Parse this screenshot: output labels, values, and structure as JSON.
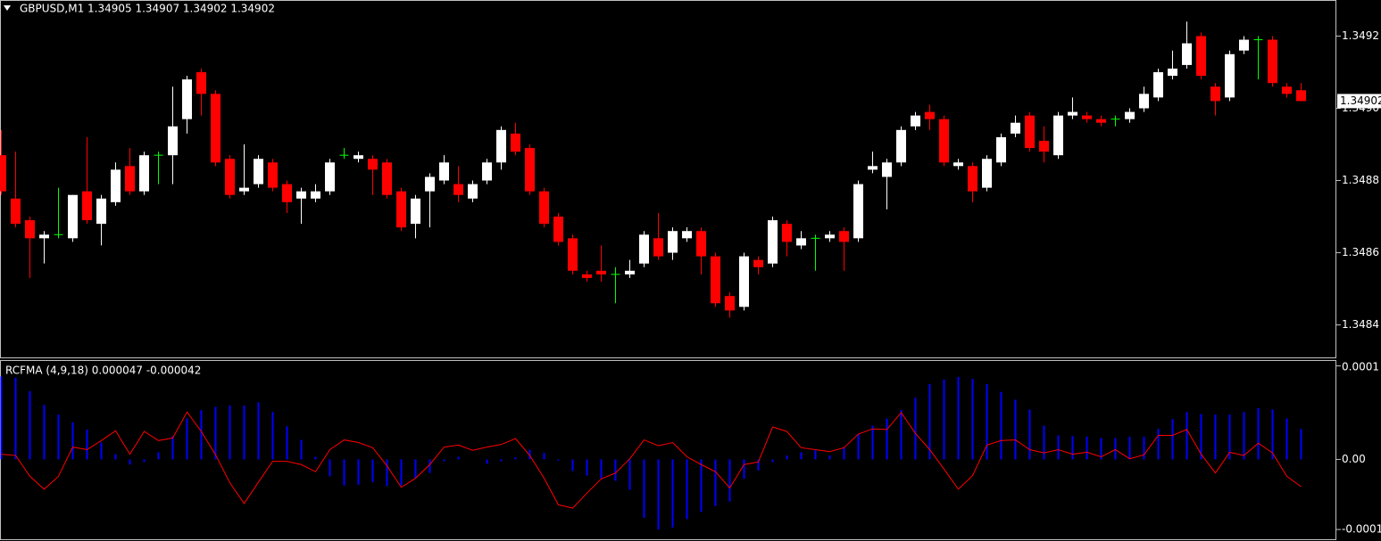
{
  "chart_data": [
    {
      "type": "candlestick",
      "title": "GBPUSD,M1  1.34905 1.34907 1.34902 1.34902",
      "bull_color": "#ffffff",
      "bear_color": "#ff0000",
      "doji_color": "#00ff00",
      "ylim": [
        1.34831,
        1.3493
      ],
      "yticks": [
        1.3492,
        {
          "value": 1.349,
          "label": "1.3490"
        },
        1.3488,
        1.3486,
        1.3484
      ],
      "last_price": 1.34902,
      "open": [
        1.34887,
        1.34875,
        1.34869,
        1.34864,
        1.34865,
        1.34864,
        1.34877,
        1.34868,
        1.34874,
        1.34884,
        1.34877,
        1.34887,
        1.34887,
        1.34897,
        1.3491,
        1.34904,
        1.34886,
        1.34877,
        1.34879,
        1.34885,
        1.34879,
        1.34875,
        1.34875,
        1.34877,
        1.34887,
        1.34886,
        1.34886,
        1.34885,
        1.34877,
        1.34868,
        1.34877,
        1.3488,
        1.34879,
        1.34875,
        1.3488,
        1.34885,
        1.34893,
        1.34889,
        1.34877,
        1.3487,
        1.34864,
        1.34854,
        1.34855,
        1.34854,
        1.34854,
        1.34857,
        1.34864,
        1.3486,
        1.34864,
        1.34866,
        1.34859,
        1.34848,
        1.34845,
        1.34858,
        1.34857,
        1.34868,
        1.34862,
        1.34864,
        1.34864,
        1.34866,
        1.34864,
        1.34883,
        1.34881,
        1.34885,
        1.34895,
        1.34899,
        1.34897,
        1.34884,
        1.34884,
        1.34878,
        1.34885,
        1.34893,
        1.34898,
        1.34891,
        1.34887,
        1.34898,
        1.34898,
        1.34897,
        1.34897,
        1.34897,
        1.349,
        1.34903,
        1.34909,
        1.34912,
        1.3492,
        1.34906,
        1.34903,
        1.34916,
        1.34919,
        1.34919,
        1.34906,
        1.34905
      ],
      "high": [
        1.34894,
        1.34888,
        1.3487,
        1.34866,
        1.34878,
        1.34876,
        1.34892,
        1.34876,
        1.34885,
        1.34889,
        1.34888,
        1.34888,
        1.34906,
        1.34909,
        1.34911,
        1.34905,
        1.34887,
        1.3489,
        1.34887,
        1.34886,
        1.3488,
        1.34878,
        1.34879,
        1.34886,
        1.34889,
        1.34888,
        1.34887,
        1.34886,
        1.34878,
        1.34876,
        1.34882,
        1.34887,
        1.34884,
        1.3488,
        1.34886,
        1.34895,
        1.34896,
        1.3489,
        1.34878,
        1.34871,
        1.34865,
        1.34855,
        1.34862,
        1.34856,
        1.34858,
        1.34866,
        1.34871,
        1.34867,
        1.34867,
        1.34867,
        1.3486,
        1.34849,
        1.3486,
        1.34859,
        1.3487,
        1.34869,
        1.34866,
        1.34865,
        1.34866,
        1.34867,
        1.3488,
        1.34888,
        1.34886,
        1.34895,
        1.34899,
        1.34901,
        1.34898,
        1.34886,
        1.34885,
        1.34887,
        1.34893,
        1.34898,
        1.34899,
        1.34895,
        1.34899,
        1.34903,
        1.34899,
        1.34898,
        1.34898,
        1.349,
        1.34906,
        1.34911,
        1.34916,
        1.34924,
        1.34921,
        1.34907,
        1.34916,
        1.3492,
        1.3492,
        1.3492,
        1.34907,
        1.34907
      ],
      "low": [
        1.34876,
        1.34867,
        1.34853,
        1.34857,
        1.34864,
        1.34863,
        1.34868,
        1.34862,
        1.34873,
        1.34876,
        1.34876,
        1.34879,
        1.34879,
        1.34893,
        1.34898,
        1.34884,
        1.34875,
        1.34876,
        1.34878,
        1.34877,
        1.34871,
        1.34868,
        1.34874,
        1.34876,
        1.34886,
        1.34885,
        1.34876,
        1.34875,
        1.34866,
        1.34864,
        1.34867,
        1.34879,
        1.34874,
        1.34874,
        1.34879,
        1.34883,
        1.34887,
        1.34876,
        1.34867,
        1.34862,
        1.34854,
        1.34852,
        1.34852,
        1.34846,
        1.34853,
        1.34856,
        1.34858,
        1.34858,
        1.34863,
        1.34854,
        1.34845,
        1.34842,
        1.34844,
        1.34854,
        1.34856,
        1.34859,
        1.34861,
        1.34855,
        1.34863,
        1.34855,
        1.34863,
        1.34882,
        1.34872,
        1.34884,
        1.34894,
        1.34894,
        1.34884,
        1.34883,
        1.34874,
        1.34877,
        1.34884,
        1.34892,
        1.34888,
        1.34885,
        1.34886,
        1.34897,
        1.34896,
        1.34895,
        1.34895,
        1.34896,
        1.34899,
        1.34902,
        1.34908,
        1.34911,
        1.34908,
        1.34898,
        1.34902,
        1.34915,
        1.34908,
        1.34906,
        1.34903,
        1.34902
      ],
      "close": [
        1.34877,
        1.34868,
        1.34864,
        1.34865,
        1.34865,
        1.34876,
        1.34869,
        1.34875,
        1.34883,
        1.34877,
        1.34887,
        1.34887,
        1.34895,
        1.34908,
        1.34904,
        1.34885,
        1.34876,
        1.34878,
        1.34886,
        1.34878,
        1.34874,
        1.34877,
        1.34877,
        1.34885,
        1.34887,
        1.34887,
        1.34883,
        1.34876,
        1.34867,
        1.34875,
        1.34881,
        1.34885,
        1.34876,
        1.34879,
        1.34885,
        1.34894,
        1.34888,
        1.34877,
        1.34868,
        1.34863,
        1.34855,
        1.34853,
        1.34854,
        1.34854,
        1.34855,
        1.34865,
        1.34859,
        1.34866,
        1.34866,
        1.34859,
        1.34846,
        1.34844,
        1.34859,
        1.34856,
        1.34869,
        1.34863,
        1.34864,
        1.34864,
        1.34865,
        1.34863,
        1.34879,
        1.34884,
        1.34885,
        1.34894,
        1.34898,
        1.34897,
        1.34885,
        1.34885,
        1.34877,
        1.34886,
        1.34892,
        1.34896,
        1.34889,
        1.34888,
        1.34898,
        1.34899,
        1.34897,
        1.34896,
        1.34897,
        1.34899,
        1.34904,
        1.3491,
        1.34911,
        1.34918,
        1.34909,
        1.34902,
        1.34915,
        1.34919,
        1.34919,
        1.34907,
        1.34904,
        1.34902
      ]
    },
    {
      "type": "histogram",
      "title": "RCFMA (4,9,18) 0.000047 -0.000042",
      "ylim": [
        -0.000123,
        0.000153
      ],
      "yticks": [
        {
          "value": 0.000144,
          "label": "0.0001"
        },
        {
          "value": 0,
          "label": "0.00"
        },
        {
          "value": -0.000108,
          "label": "-0.0001"
        }
      ],
      "histogram": {
        "color": "#0000ff",
        "values": [
          0.000128,
          0.000126,
          0.000105,
          8.4e-05,
          6.9e-05,
          5.7e-05,
          4.6e-05,
          2.6e-05,
          8e-06,
          -8e-06,
          -4e-06,
          1.1e-05,
          3.6e-05,
          6.3e-05,
          7.6e-05,
          8.1e-05,
          8.3e-05,
          8.3e-05,
          8.8e-05,
          7.3e-05,
          5.1e-05,
          3e-05,
          4e-06,
          -2.6e-05,
          -4e-05,
          -3.9e-05,
          -3.5e-05,
          -4.1e-05,
          -4e-05,
          -2.9e-05,
          -2.1e-05,
          -3e-06,
          4e-06,
          0,
          -7e-06,
          -3e-06,
          3e-06,
          1.5e-05,
          1e-05,
          -2e-06,
          -1.8e-05,
          -2.5e-05,
          -2.9e-05,
          -3.3e-05,
          -4.7e-05,
          -9e-05,
          -0.000108,
          -0.000105,
          -9.2e-05,
          -8.1e-05,
          -7.2e-05,
          -6.5e-05,
          -3e-05,
          -1.7e-05,
          -4e-06,
          6e-06,
          1.1e-05,
          1.4e-05,
          6e-06,
          1.8e-05,
          3.9e-05,
          5.2e-05,
          6.3e-05,
          7.6e-05,
          9.5e-05,
          0.000116,
          0.000123,
          0.000127,
          0.000124,
          0.000116,
          0.000104,
          9.2e-05,
          7.7e-05,
          5.2e-05,
          3.7e-05,
          3.6e-05,
          3.5e-05,
          3.3e-05,
          3.3e-05,
          3.5e-05,
          3.5e-05,
          4.7e-05,
          6.2e-05,
          7.3e-05,
          7e-05,
          6.9e-05,
          6.9e-05,
          7.3e-05,
          7.9e-05,
          7.7e-05,
          6.3e-05,
          4.7e-05
        ]
      },
      "line": {
        "color": "#ff0000",
        "values": [
          8e-06,
          6e-06,
          -2.6e-05,
          -4.6e-05,
          -2.6e-05,
          1.9e-05,
          1.5e-05,
          2.9e-05,
          4.4e-05,
          8e-06,
          4.3e-05,
          2.9e-05,
          3.3e-05,
          7.3e-05,
          4.3e-05,
          7e-06,
          -3.6e-05,
          -6.8e-05,
          -3.5e-05,
          -3e-06,
          -3e-06,
          -8e-06,
          -1.9e-05,
          1.5e-05,
          3e-05,
          2.6e-05,
          1.8e-05,
          -1e-05,
          -4.3e-05,
          -2.9e-05,
          -8e-06,
          1.9e-05,
          2.2e-05,
          1.4e-05,
          1.9e-05,
          2.3e-05,
          3.2e-05,
          6e-06,
          -2.9e-05,
          -7e-05,
          -7.5e-05,
          -5.2e-05,
          -3e-05,
          -2.1e-05,
          1e-06,
          3e-05,
          2.1e-05,
          2.6e-05,
          4e-06,
          -8e-06,
          -1.9e-05,
          -4.4e-05,
          -8e-06,
          -4e-06,
          5e-05,
          4.3e-05,
          1.8e-05,
          1.5e-05,
          1.2e-05,
          1.8e-05,
          3.9e-05,
          4.7e-05,
          4.6e-05,
          7.2e-05,
          4e-05,
          1.5e-05,
          -1.5e-05,
          -4.6e-05,
          -2.5e-05,
          2.2e-05,
          2.9e-05,
          3e-05,
          1.5e-05,
          1e-05,
          1.5e-05,
          8e-06,
          1.1e-05,
          4e-06,
          1.5e-05,
          1e-06,
          7e-06,
          3.7e-05,
          3.7e-05,
          4.6e-05,
          8e-06,
          -2.1e-05,
          1.1e-05,
          6e-06,
          2.5e-05,
          1e-05,
          -2.6e-05,
          -4.2e-05
        ]
      }
    }
  ]
}
